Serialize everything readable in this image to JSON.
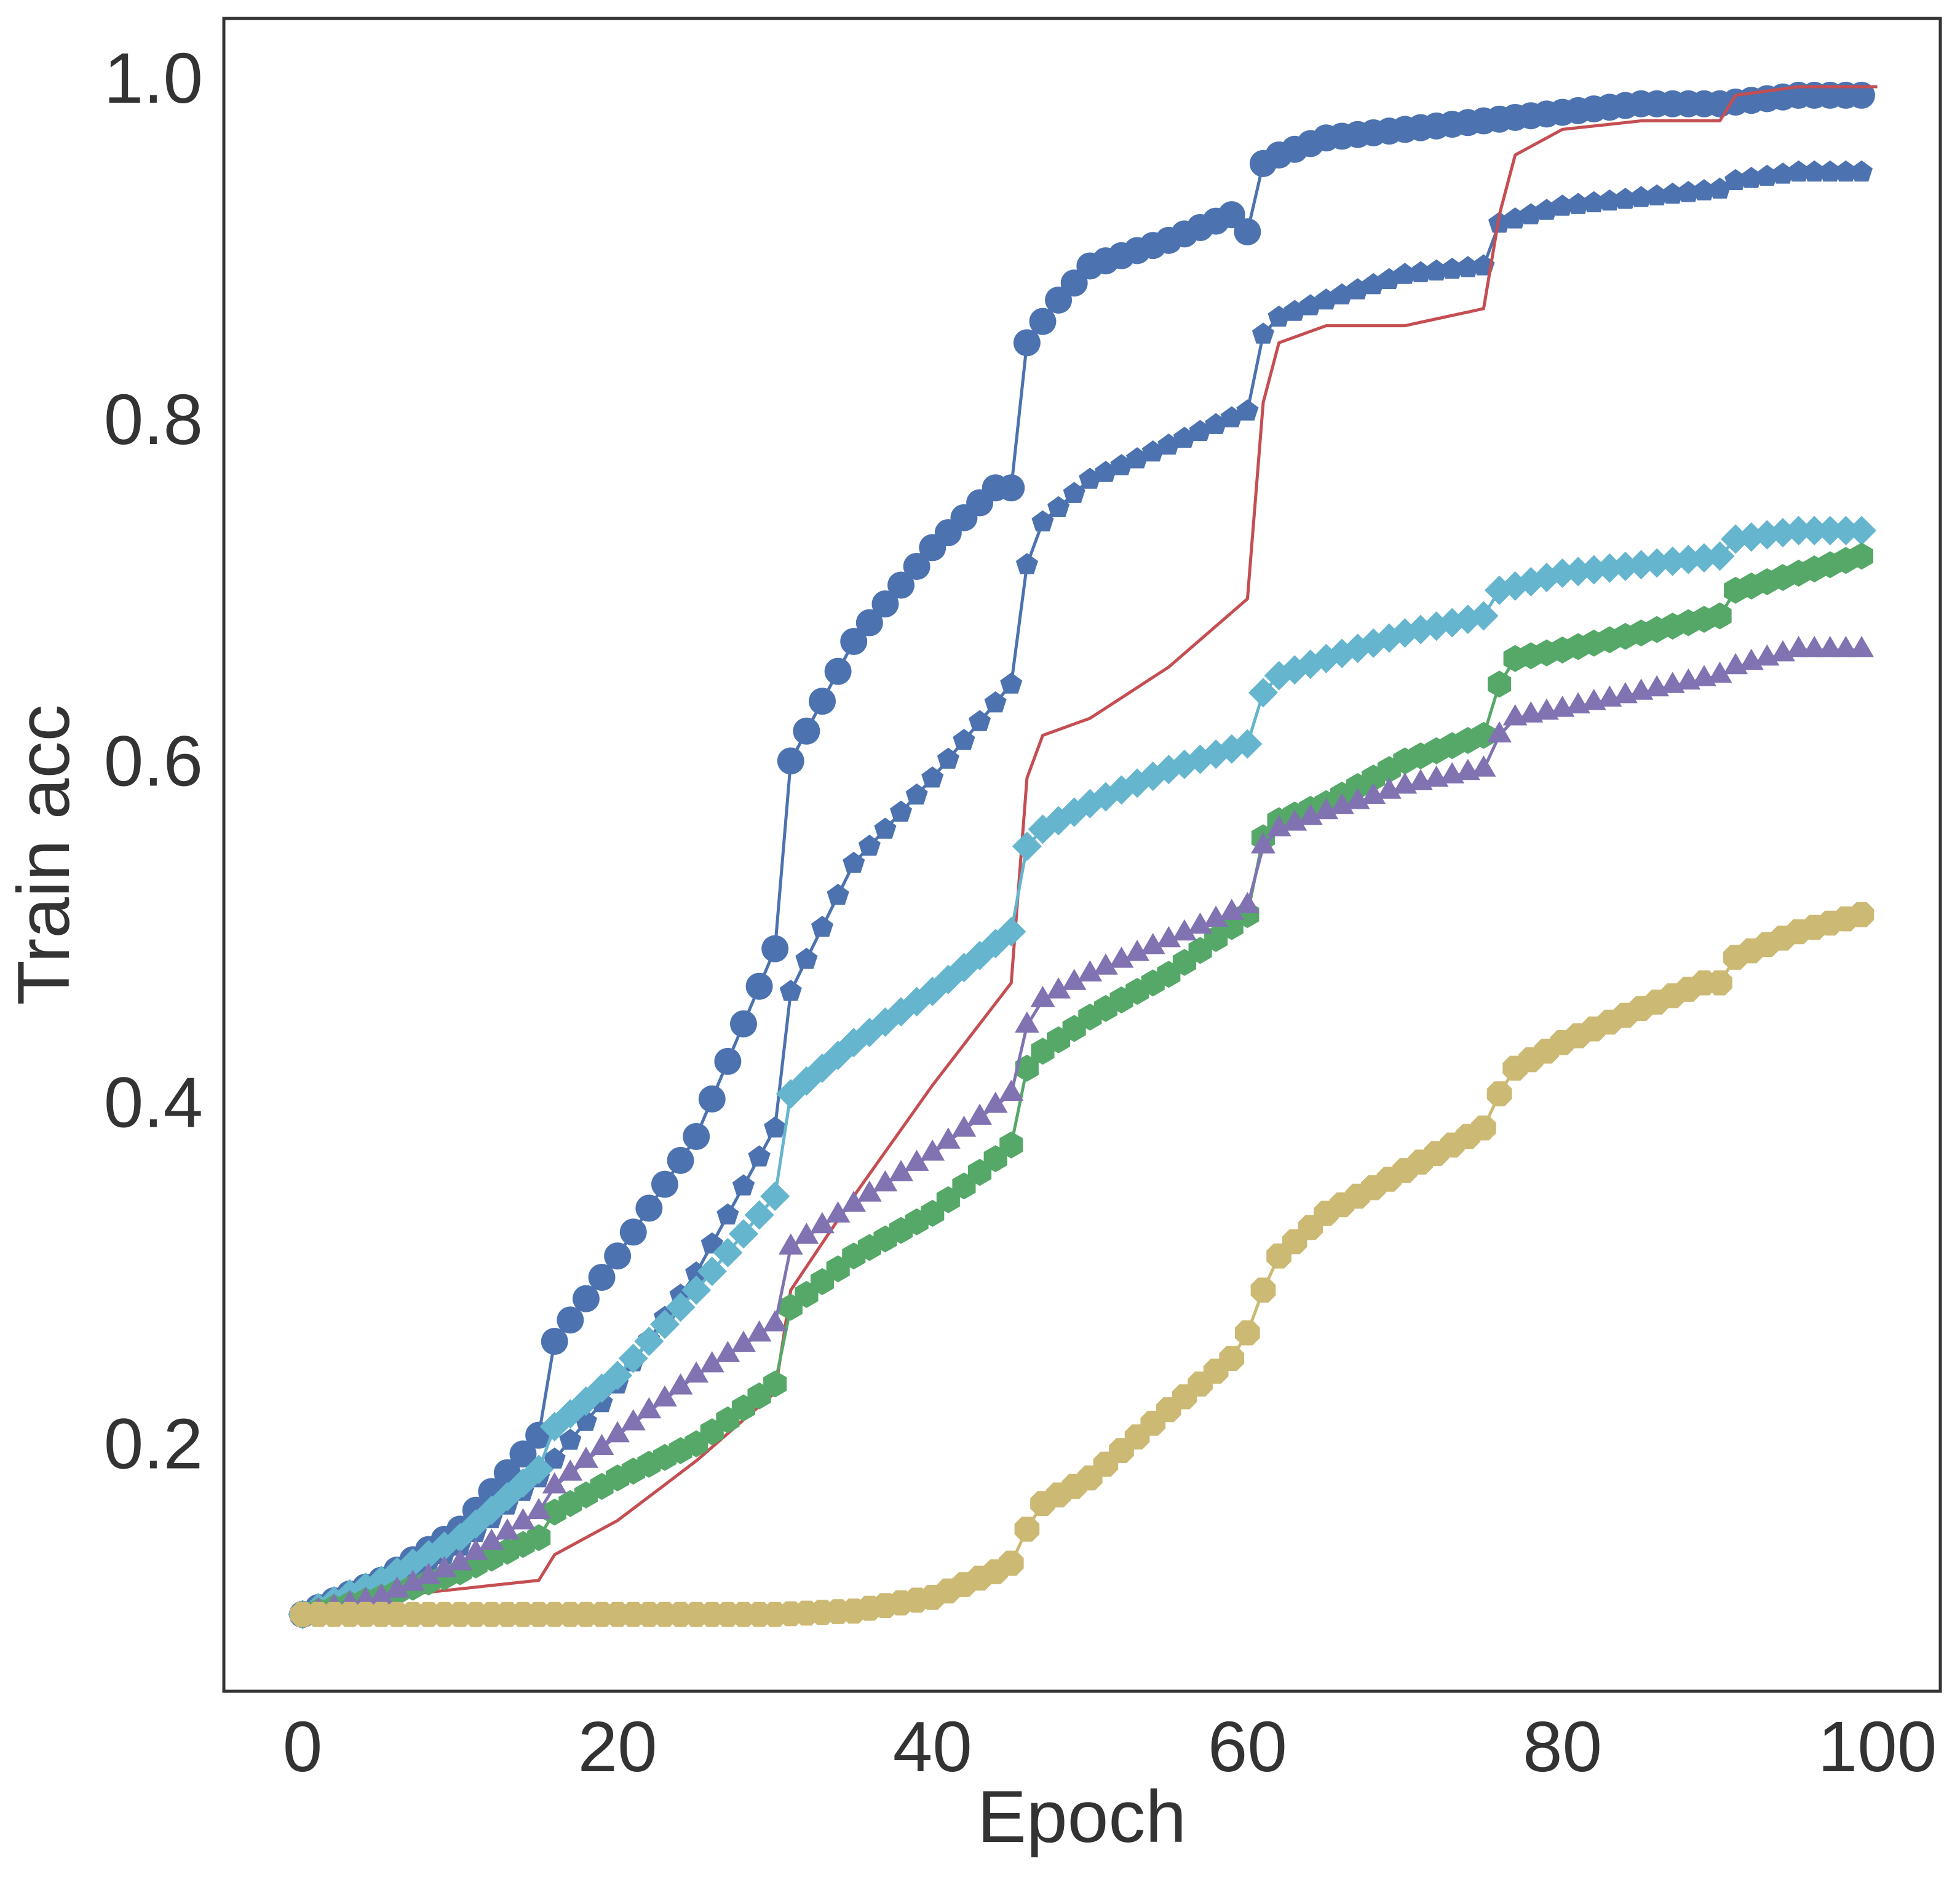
{
  "chart_data": {
    "type": "line",
    "title": "",
    "xlabel": "Epoch",
    "ylabel": "Train acc",
    "xlim": [
      -5,
      104
    ],
    "ylim": [
      0.055,
      1.035
    ],
    "xticks": [
      0,
      20,
      40,
      60,
      80,
      100
    ],
    "yticks": [
      0.2,
      0.4,
      0.6,
      0.8,
      1.0
    ],
    "xtick_labels": [
      "0",
      "20",
      "40",
      "60",
      "80",
      "100"
    ],
    "ytick_labels": [
      "0.2",
      "0.4",
      "0.6",
      "0.8",
      "1.0"
    ],
    "grid": false,
    "legend": "none",
    "series": [
      {
        "name": "series-circle-blue",
        "color": "#4C72B0",
        "marker": "circle",
        "x": [
          0,
          5,
          10,
          15,
          16,
          20,
          25,
          30,
          31,
          35,
          40,
          44,
          45,
          46,
          48,
          50,
          55,
          59,
          60,
          61,
          62,
          65,
          70,
          75,
          80,
          85,
          90,
          95,
          99
        ],
        "y": [
          0.1,
          0.12,
          0.15,
          0.205,
          0.26,
          0.31,
          0.38,
          0.49,
          0.6,
          0.67,
          0.725,
          0.76,
          0.76,
          0.845,
          0.87,
          0.89,
          0.905,
          0.92,
          0.91,
          0.95,
          0.955,
          0.965,
          0.97,
          0.975,
          0.98,
          0.985,
          0.985,
          0.99,
          0.99
        ]
      },
      {
        "name": "series-pentagon-blue",
        "color": "#4C72B0",
        "marker": "pentagon",
        "x": [
          0,
          5,
          10,
          15,
          20,
          25,
          30,
          31,
          35,
          40,
          45,
          46,
          47,
          50,
          55,
          60,
          61,
          62,
          65,
          70,
          75,
          76,
          80,
          85,
          90,
          91,
          95,
          99
        ],
        "y": [
          0.1,
          0.115,
          0.14,
          0.18,
          0.235,
          0.3,
          0.385,
          0.465,
          0.54,
          0.59,
          0.645,
          0.715,
          0.74,
          0.765,
          0.785,
          0.805,
          0.85,
          0.86,
          0.87,
          0.885,
          0.89,
          0.915,
          0.925,
          0.93,
          0.935,
          0.94,
          0.945,
          0.945
        ]
      },
      {
        "name": "series-line-red",
        "color": "#C44E52",
        "marker": "none",
        "x": [
          0,
          5,
          10,
          15,
          16,
          20,
          25,
          30,
          31,
          35,
          40,
          45,
          46,
          47,
          50,
          55,
          60,
          61,
          62,
          65,
          70,
          75,
          76,
          77,
          80,
          85,
          90,
          91,
          95,
          100
        ],
        "y": [
          0.1,
          0.11,
          0.115,
          0.12,
          0.135,
          0.155,
          0.19,
          0.23,
          0.29,
          0.345,
          0.41,
          0.47,
          0.59,
          0.615,
          0.625,
          0.655,
          0.695,
          0.81,
          0.845,
          0.855,
          0.855,
          0.865,
          0.92,
          0.955,
          0.97,
          0.975,
          0.975,
          0.99,
          0.995,
          0.995
        ]
      },
      {
        "name": "series-diamond-cyan",
        "color": "#64B5CD",
        "marker": "diamond",
        "x": [
          0,
          5,
          10,
          15,
          16,
          20,
          25,
          30,
          31,
          35,
          40,
          45,
          46,
          47,
          50,
          55,
          60,
          61,
          62,
          65,
          70,
          75,
          76,
          80,
          85,
          90,
          91,
          95,
          99
        ],
        "y": [
          0.1,
          0.12,
          0.145,
          0.185,
          0.21,
          0.24,
          0.29,
          0.345,
          0.405,
          0.435,
          0.465,
          0.5,
          0.55,
          0.56,
          0.575,
          0.595,
          0.61,
          0.64,
          0.65,
          0.66,
          0.675,
          0.685,
          0.7,
          0.71,
          0.715,
          0.72,
          0.73,
          0.735,
          0.735
        ]
      },
      {
        "name": "series-hexagon-green",
        "color": "#55A868",
        "marker": "hexagon",
        "x": [
          0,
          5,
          10,
          15,
          16,
          20,
          25,
          30,
          31,
          35,
          40,
          45,
          46,
          47,
          50,
          55,
          60,
          61,
          62,
          65,
          70,
          75,
          76,
          77,
          80,
          85,
          90,
          91,
          95,
          99
        ],
        "y": [
          0.1,
          0.11,
          0.125,
          0.145,
          0.16,
          0.18,
          0.2,
          0.235,
          0.28,
          0.31,
          0.335,
          0.375,
          0.42,
          0.43,
          0.45,
          0.475,
          0.51,
          0.555,
          0.565,
          0.575,
          0.6,
          0.615,
          0.645,
          0.66,
          0.665,
          0.675,
          0.685,
          0.7,
          0.71,
          0.72
        ]
      },
      {
        "name": "series-triangle-purple",
        "color": "#8172B2",
        "marker": "triangle",
        "x": [
          0,
          5,
          10,
          15,
          16,
          20,
          25,
          30,
          31,
          35,
          40,
          45,
          46,
          47,
          50,
          55,
          60,
          61,
          62,
          65,
          70,
          75,
          76,
          77,
          80,
          85,
          90,
          91,
          95,
          99
        ],
        "y": [
          0.1,
          0.11,
          0.13,
          0.16,
          0.175,
          0.205,
          0.24,
          0.27,
          0.315,
          0.34,
          0.37,
          0.405,
          0.445,
          0.46,
          0.475,
          0.495,
          0.515,
          0.55,
          0.56,
          0.57,
          0.585,
          0.595,
          0.615,
          0.625,
          0.63,
          0.64,
          0.65,
          0.655,
          0.665,
          0.665
        ]
      },
      {
        "name": "series-octagon-yellow",
        "color": "#CCB974",
        "marker": "octagon",
        "x": [
          0,
          10,
          20,
          30,
          35,
          40,
          44,
          45,
          46,
          47,
          50,
          55,
          59,
          60,
          61,
          62,
          65,
          70,
          75,
          76,
          77,
          80,
          85,
          89,
          90,
          91,
          95,
          99
        ],
        "y": [
          0.1,
          0.1,
          0.1,
          0.1,
          0.102,
          0.11,
          0.125,
          0.13,
          0.15,
          0.165,
          0.18,
          0.22,
          0.25,
          0.265,
          0.29,
          0.31,
          0.335,
          0.36,
          0.385,
          0.405,
          0.42,
          0.435,
          0.455,
          0.47,
          0.47,
          0.485,
          0.5,
          0.51
        ]
      }
    ]
  }
}
